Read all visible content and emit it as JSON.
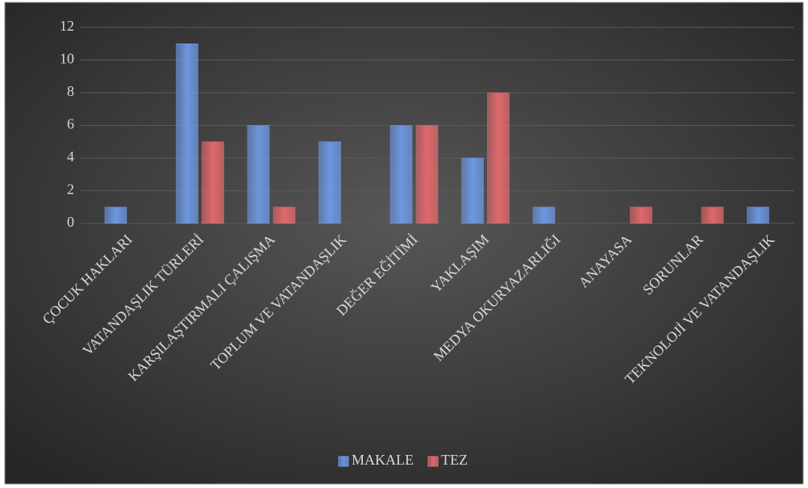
{
  "chart_data": {
    "type": "bar",
    "categories": [
      "ÇOCUK HAKLARI",
      "VATANDAŞLIK TÜRLERİ",
      "KARŞILAŞTIRMALI ÇALIŞMA",
      "TOPLUM VE VATANDAŞLIK",
      "DEĞER EĞİTİMİ",
      "YAKLAŞIM",
      "MEDYA OKURYAZARLIĞI",
      "ANAYASA",
      "SORUNLAR",
      "TEKNOLOJİ VE VATANDAŞLIK"
    ],
    "series": [
      {
        "name": "MAKALE",
        "color": "#6f9be8",
        "values": [
          1,
          11,
          6,
          5,
          6,
          4,
          1,
          0,
          0,
          1
        ]
      },
      {
        "name": "TEZ",
        "color": "#e86a6f",
        "values": [
          0,
          5,
          1,
          0,
          6,
          8,
          0,
          1,
          1,
          0
        ]
      }
    ],
    "ylim": [
      0,
      12
    ],
    "yticks": [
      0,
      2,
      4,
      6,
      8,
      10,
      12
    ],
    "grid": true,
    "legend": "bottom"
  }
}
